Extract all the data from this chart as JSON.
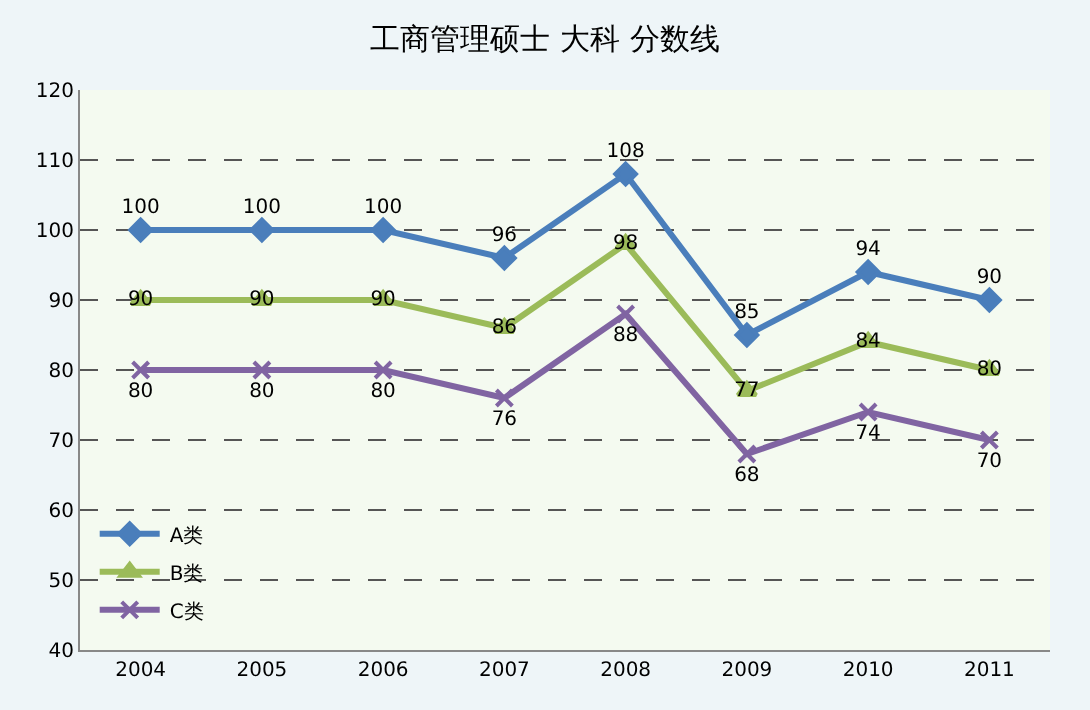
{
  "chart_data": {
    "type": "line",
    "title": "工商管理硕士 大科 分数线",
    "categories": [
      "2004",
      "2005",
      "2006",
      "2007",
      "2008",
      "2009",
      "2010",
      "2011"
    ],
    "series": [
      {
        "name": "A类",
        "color": "#4a7ebb",
        "marker": "diamond",
        "values": [
          100,
          100,
          100,
          96,
          108,
          85,
          94,
          90
        ]
      },
      {
        "name": "B类",
        "color": "#9bbb59",
        "marker": "triangle",
        "values": [
          90,
          90,
          90,
          86,
          98,
          77,
          84,
          80
        ]
      },
      {
        "name": "C类",
        "color": "#8064a2",
        "marker": "cross",
        "values": [
          80,
          80,
          80,
          76,
          88,
          68,
          74,
          70
        ]
      }
    ],
    "ylim": [
      40,
      120
    ],
    "yticks": [
      40,
      50,
      60,
      70,
      80,
      90,
      100,
      110,
      120
    ],
    "grid": "y",
    "legend": "bottom left",
    "data_labels": true,
    "line_style": "solid"
  }
}
